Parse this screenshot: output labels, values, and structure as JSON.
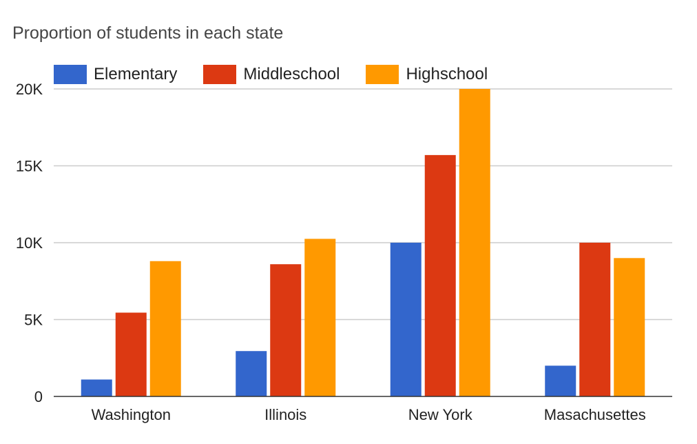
{
  "chart_data": {
    "type": "bar",
    "title": "Proportion of students in each state",
    "categories": [
      "Washington",
      "Illinois",
      "New York",
      "Masachusettes"
    ],
    "series": [
      {
        "name": "Elementary",
        "color": "#3366cc",
        "values": [
          1100,
          2950,
          10000,
          2000
        ]
      },
      {
        "name": "Middleschool",
        "color": "#dc3912",
        "values": [
          5450,
          8600,
          15700,
          10000
        ]
      },
      {
        "name": "Highschool",
        "color": "#ff9900",
        "values": [
          8800,
          10250,
          20000,
          9000
        ]
      }
    ],
    "ylim": [
      0,
      20000
    ],
    "yticks": [
      {
        "value": 0,
        "label": "0"
      },
      {
        "value": 5000,
        "label": "5K"
      },
      {
        "value": 10000,
        "label": "10K"
      },
      {
        "value": 15000,
        "label": "15K"
      },
      {
        "value": 20000,
        "label": "20K"
      }
    ],
    "grid": true,
    "legend_position": "top-left",
    "xlabel": "",
    "ylabel": ""
  }
}
